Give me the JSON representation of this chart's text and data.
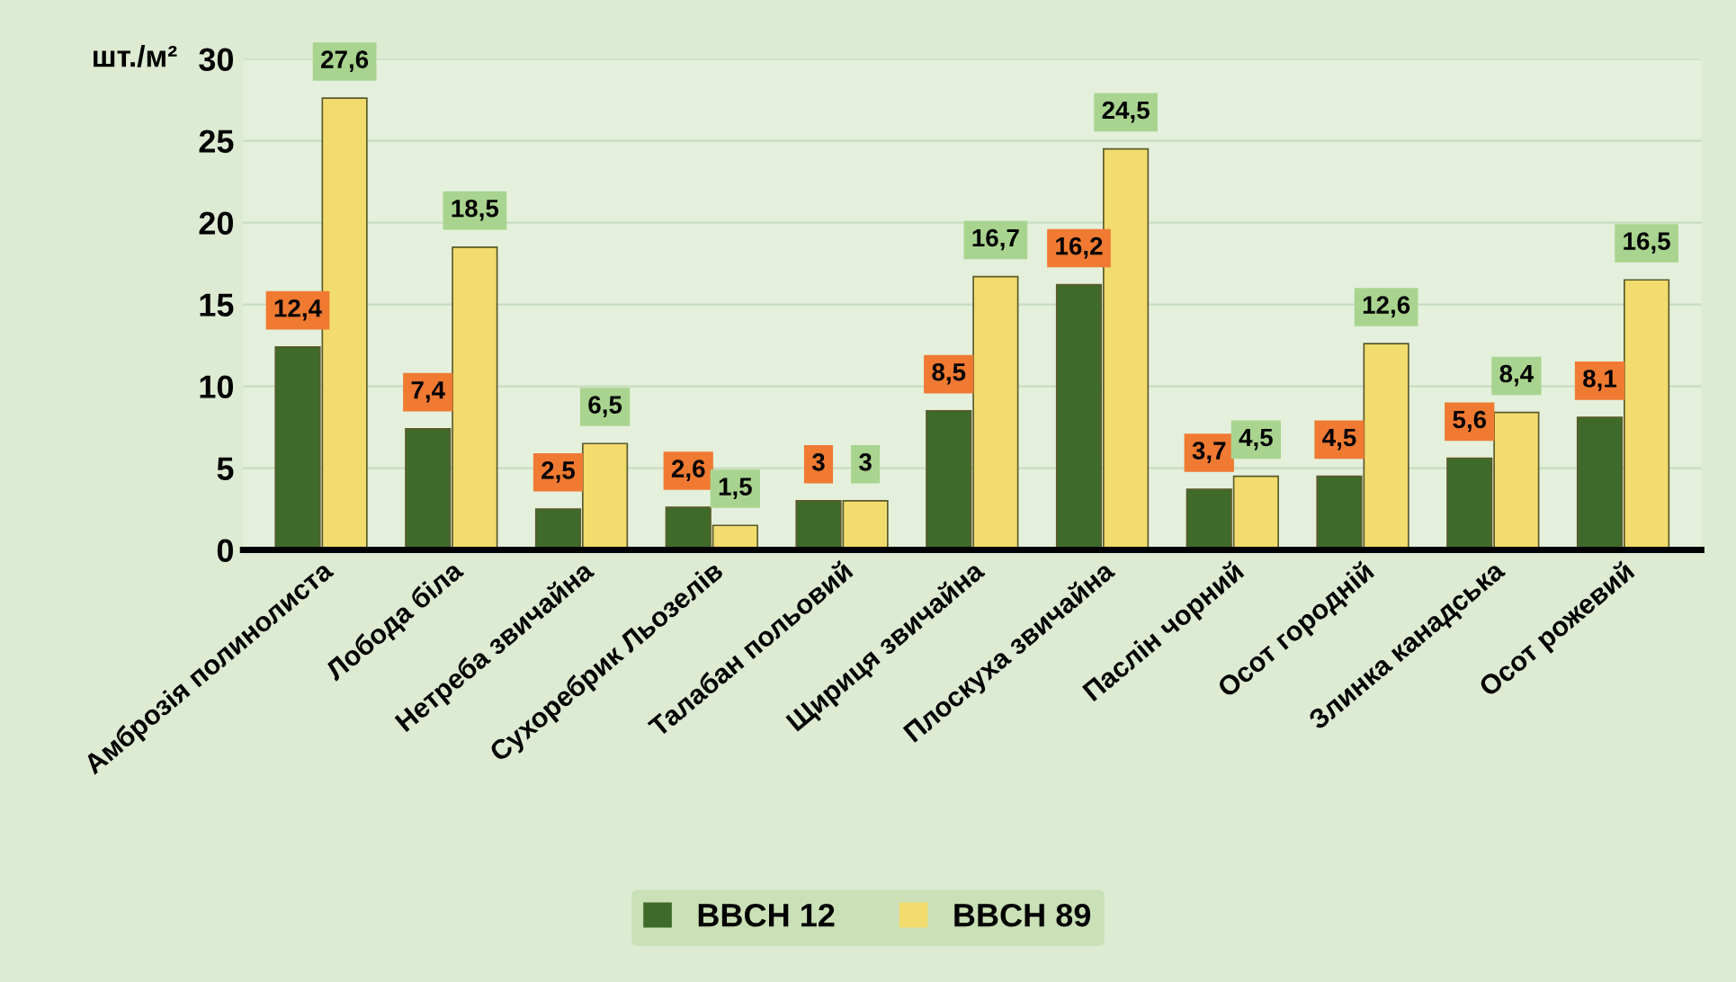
{
  "chart_data": {
    "type": "bar",
    "ylabel": "шт./м²",
    "categories": [
      "Амброзія полинолиста",
      "Лобода біла",
      "Нетреба звичайна",
      "Сухоребрик Льозелів",
      "Талабан польовий",
      "Щириця звичайна",
      "Плоскуха звичайна",
      "Паслін чорний",
      "Осот городній",
      "Злинка канадська",
      "Осот рожевий"
    ],
    "series": [
      {
        "name": "BBCH 12",
        "color": "#3f6b2a",
        "values": [
          12.4,
          7.4,
          2.5,
          2.6,
          3,
          8.5,
          16.2,
          3.7,
          4.5,
          5.6,
          8.1
        ],
        "value_labels": [
          "12,4",
          "7,4",
          "2,5",
          "2,6",
          "3",
          "8,5",
          "16,2",
          "3,7",
          "4,5",
          "5,6",
          "8,1"
        ]
      },
      {
        "name": "BBCH 89",
        "color": "#f2dc6e",
        "values": [
          27.6,
          18.5,
          6.5,
          1.5,
          3,
          16.7,
          24.5,
          4.5,
          12.6,
          8.4,
          16.5
        ],
        "value_labels": [
          "27,6",
          "18,5",
          "6,5",
          "1,5",
          "3",
          "16,7",
          "24,5",
          "4,5",
          "12,6",
          "8,4",
          "16,5"
        ]
      }
    ],
    "ylim": [
      0,
      30
    ],
    "yticks": [
      0,
      5,
      10,
      15,
      20,
      25,
      30
    ],
    "grid": "y",
    "legend": "bottom"
  }
}
